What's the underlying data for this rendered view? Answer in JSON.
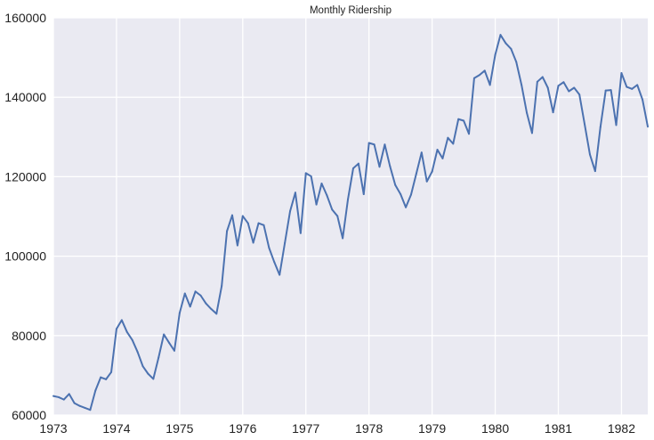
{
  "chart_data": {
    "type": "line",
    "title": "Monthly Ridership",
    "xlabel": "",
    "ylabel": "",
    "x_start": "1973-01",
    "x_step": "month",
    "xlim": [
      "1973-01",
      "1982-06"
    ],
    "ylim": [
      60000,
      160000
    ],
    "x_ticks": [
      "1973",
      "1974",
      "1975",
      "1976",
      "1977",
      "1978",
      "1979",
      "1980",
      "1981",
      "1982"
    ],
    "y_ticks": [
      "60000",
      "80000",
      "100000",
      "120000",
      "140000",
      "160000"
    ],
    "grid": true,
    "legend": "none",
    "colors": {
      "background": "#eaeaf2",
      "grid": "#ffffff",
      "line": "#4c72b0"
    },
    "series": [
      {
        "values": [
          64800,
          64500,
          63900,
          65300,
          63000,
          62300,
          61800,
          61300,
          66200,
          69500,
          69000,
          70800,
          81700,
          83900,
          80900,
          78900,
          75900,
          72300,
          70400,
          69100,
          74500,
          80300,
          78200,
          76200,
          85700,
          90600,
          87300,
          91100,
          90100,
          88100,
          86700,
          85500,
          92500,
          106300,
          110300,
          102700,
          110100,
          108300,
          103400,
          108300,
          107800,
          102100,
          98500,
          95300,
          103300,
          111300,
          116000,
          105800,
          120900,
          120100,
          113000,
          118300,
          115300,
          111700,
          110100,
          104500,
          114300,
          122100,
          123300,
          115600,
          128500,
          128100,
          122500,
          128100,
          122600,
          117900,
          115600,
          112300,
          115500,
          120800,
          126100,
          118800,
          121300,
          126800,
          124600,
          129800,
          128300,
          134500,
          134100,
          130800,
          144800,
          145600,
          146700,
          143100,
          150700,
          155700,
          153600,
          152200,
          148900,
          143100,
          136100,
          131000,
          143900,
          145100,
          142400,
          136200,
          142900,
          143800,
          141500,
          142400,
          140700,
          133200,
          125600,
          121400,
          132500,
          141700,
          141800,
          133000,
          146100,
          142600,
          142100,
          143100,
          139400,
          132600
        ]
      }
    ]
  }
}
